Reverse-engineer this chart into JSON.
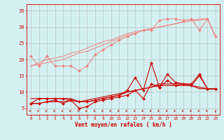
{
  "x": [
    0,
    1,
    2,
    3,
    4,
    5,
    6,
    7,
    8,
    9,
    10,
    11,
    12,
    13,
    14,
    15,
    16,
    17,
    18,
    19,
    20,
    21,
    22,
    23
  ],
  "line1": [
    21.0,
    18.0,
    21.0,
    18.0,
    18.0,
    18.0,
    16.5,
    18.0,
    21.5,
    23.0,
    24.5,
    26.0,
    27.0,
    28.0,
    29.0,
    29.0,
    32.0,
    32.5,
    32.5,
    32.0,
    32.5,
    29.0,
    32.5,
    27.0
  ],
  "line2": [
    18.0,
    18.5,
    19.0,
    19.5,
    20.0,
    21.0,
    22.0,
    22.5,
    23.5,
    24.5,
    25.5,
    26.5,
    27.5,
    28.0,
    29.0,
    29.5,
    30.0,
    30.5,
    31.0,
    31.5,
    32.0,
    32.0,
    32.5,
    27.0
  ],
  "line3": [
    18.0,
    19.0,
    20.0,
    20.5,
    21.0,
    22.0,
    22.5,
    23.5,
    24.5,
    25.5,
    26.0,
    27.0,
    28.0,
    28.5,
    29.0,
    29.5,
    30.0,
    30.5,
    31.0,
    31.5,
    32.0,
    32.5,
    32.5,
    27.0
  ],
  "line4": [
    6.5,
    8.0,
    8.0,
    8.0,
    8.0,
    7.5,
    7.0,
    7.0,
    7.5,
    8.0,
    8.5,
    9.0,
    10.5,
    14.5,
    10.5,
    19.0,
    11.5,
    15.5,
    13.0,
    12.5,
    12.5,
    15.5,
    11.0,
    11.0
  ],
  "line5": [
    8.0,
    8.0,
    8.0,
    8.0,
    8.0,
    8.0,
    7.0,
    7.0,
    7.5,
    8.0,
    8.5,
    9.0,
    10.0,
    10.5,
    11.0,
    11.5,
    12.5,
    12.5,
    12.5,
    12.5,
    12.0,
    11.0,
    11.0,
    11.0
  ],
  "line6": [
    6.5,
    6.5,
    7.0,
    7.5,
    6.5,
    7.5,
    5.0,
    5.5,
    7.0,
    7.5,
    8.0,
    8.5,
    9.0,
    10.5,
    8.0,
    12.5,
    11.5,
    13.5,
    12.0,
    12.5,
    12.0,
    15.0,
    11.0,
    11.0
  ],
  "line7": [
    6.5,
    6.5,
    7.0,
    7.0,
    7.0,
    7.5,
    7.0,
    7.5,
    8.0,
    8.5,
    9.0,
    9.5,
    10.0,
    10.5,
    11.0,
    11.5,
    12.0,
    12.0,
    12.0,
    12.0,
    12.0,
    11.5,
    11.0,
    11.0
  ],
  "bg_color": "#d4f0f0",
  "grid_color": "#b0b0b0",
  "light_color": "#f08080",
  "dark_color": "#cc0000",
  "xlabel": "Vent moyen/en rafales ( km/h )",
  "ylabel_ticks": [
    5,
    10,
    15,
    20,
    25,
    30,
    35
  ],
  "xlim": [
    -0.5,
    23.5
  ],
  "ylim": [
    3,
    37
  ]
}
